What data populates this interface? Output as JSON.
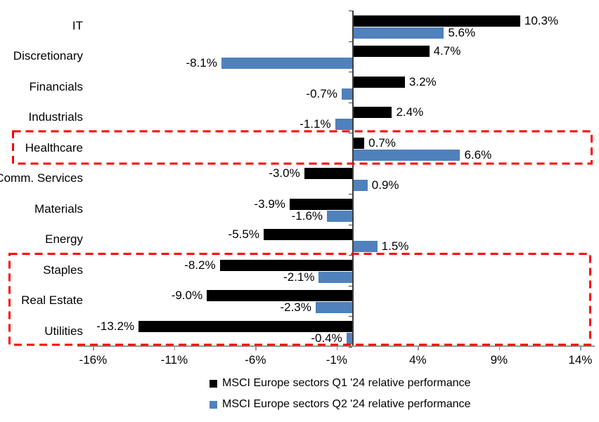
{
  "chart_data": {
    "type": "bar",
    "orientation": "horizontal",
    "title": "",
    "categories": [
      "IT",
      "Discretionary",
      "Financials",
      "Industrials",
      "Healthcare",
      "Comm. Services",
      "Materials",
      "Energy",
      "Staples",
      "Real Estate",
      "Utilities"
    ],
    "series": [
      {
        "name": "MSCI Europe sectors Q1 '24 relative performance",
        "color": "#000000",
        "values": [
          10.3,
          4.7,
          3.2,
          2.4,
          0.7,
          -3.0,
          -3.9,
          -5.5,
          -8.2,
          -9.0,
          -13.2
        ]
      },
      {
        "name": "MSCI Europe sectors Q2 '24 relative performance",
        "color": "#4F81BD",
        "values": [
          5.6,
          -8.1,
          -0.7,
          -1.1,
          6.6,
          0.9,
          -1.6,
          1.5,
          -2.1,
          -2.3,
          -0.4
        ]
      }
    ],
    "x_axis": {
      "tick_labels": [
        "-16%",
        "-11%",
        "-6%",
        "-1%",
        "4%",
        "9%",
        "14%"
      ],
      "tick_values": [
        -16,
        -11,
        -6,
        -1,
        4,
        9,
        14
      ],
      "range": [
        -17,
        15.2
      ],
      "unit": "%"
    },
    "data_labels": true,
    "data_label_format": "0.0%",
    "grid": false,
    "legend_position": "bottom",
    "highlights": [
      {
        "categories": [
          "Healthcare"
        ],
        "style": "dashed-box",
        "color": "#FF0000"
      },
      {
        "categories": [
          "Staples",
          "Real Estate",
          "Utilities"
        ],
        "style": "dashed-box",
        "color": "#FF0000"
      }
    ],
    "colors": {
      "axis_vertical": "#3f3f3f",
      "axis_horizontal": "#969696",
      "text": "#000000",
      "background": "#ffffff"
    }
  }
}
